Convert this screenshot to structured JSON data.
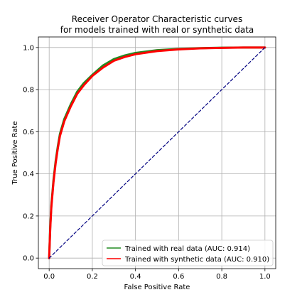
{
  "chart_data": {
    "type": "line",
    "title_line1": "Receiver Operator Characteristic curves",
    "title_line2": "for models trained with real or synthetic data",
    "xlabel": "False Positive Rate",
    "ylabel": "True Positive Rate",
    "xlim": [
      -0.05,
      1.05
    ],
    "ylim": [
      -0.05,
      1.05
    ],
    "grid": true,
    "legend_position": "lower-right",
    "xticks": [
      0.0,
      0.2,
      0.4,
      0.6,
      0.8,
      1.0
    ],
    "yticks": [
      0.0,
      0.2,
      0.4,
      0.6,
      0.8,
      1.0
    ],
    "xtick_labels": [
      "0.0",
      "0.2",
      "0.4",
      "0.6",
      "0.8",
      "1.0"
    ],
    "ytick_labels": [
      "0.0",
      "0.2",
      "0.4",
      "0.6",
      "0.8",
      "1.0"
    ],
    "series": [
      {
        "name": "Trained with real data (AUC: 0.914)",
        "color": "#228b22",
        "x": [
          0.0,
          0.005,
          0.01,
          0.02,
          0.03,
          0.04,
          0.05,
          0.07,
          0.1,
          0.13,
          0.16,
          0.2,
          0.25,
          0.3,
          0.35,
          0.4,
          0.5,
          0.6,
          0.7,
          0.8,
          0.9,
          1.0
        ],
        "y": [
          0.0,
          0.15,
          0.25,
          0.37,
          0.46,
          0.53,
          0.59,
          0.66,
          0.73,
          0.79,
          0.83,
          0.87,
          0.915,
          0.945,
          0.962,
          0.974,
          0.987,
          0.993,
          0.997,
          0.999,
          1.0,
          1.0
        ]
      },
      {
        "name": "Trained with synthetic data (AUC: 0.910)",
        "color": "#ff0000",
        "x": [
          0.0,
          0.005,
          0.01,
          0.02,
          0.03,
          0.04,
          0.05,
          0.07,
          0.1,
          0.13,
          0.16,
          0.2,
          0.25,
          0.3,
          0.35,
          0.4,
          0.5,
          0.6,
          0.7,
          0.8,
          0.9,
          1.0
        ],
        "y": [
          0.0,
          0.14,
          0.24,
          0.36,
          0.45,
          0.52,
          0.58,
          0.65,
          0.72,
          0.78,
          0.82,
          0.865,
          0.905,
          0.937,
          0.955,
          0.968,
          0.983,
          0.991,
          0.996,
          0.998,
          1.0,
          1.0
        ]
      },
      {
        "name": "",
        "color": "#000080",
        "dashed": true,
        "x": [
          0.0,
          1.0
        ],
        "y": [
          0.0,
          1.0
        ]
      }
    ]
  }
}
